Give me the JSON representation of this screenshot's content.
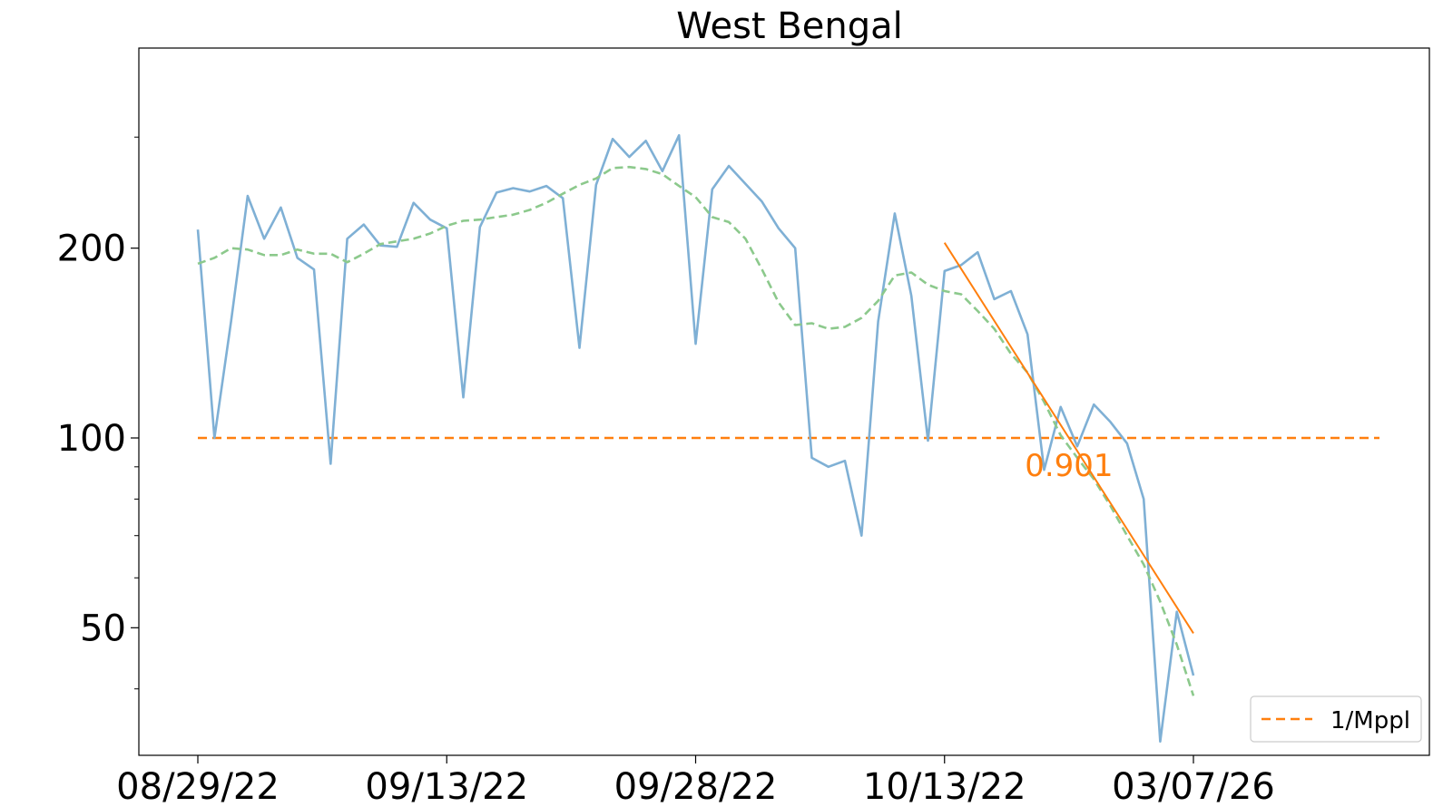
{
  "chart_data": {
    "type": "line",
    "title": "West Bengal",
    "xlabel": "",
    "ylabel": "",
    "y_scale": "log",
    "ylim": [
      28,
      300
    ],
    "x_tick_labels": [
      "08/29/22",
      "09/13/22",
      "09/28/22",
      "10/13/22",
      "03/07/26"
    ],
    "y_tick_labels": [
      "50",
      "100",
      "200"
    ],
    "y_tick_values": [
      50,
      100,
      200
    ],
    "series": [
      {
        "name": "",
        "color": "#7fb0d5",
        "style": "solid",
        "values": [
          214,
          100,
          153,
          242,
          207,
          232,
          193,
          185,
          91,
          207,
          218,
          202,
          201,
          236,
          222,
          215,
          116,
          216,
          245,
          249,
          246,
          251,
          240,
          139,
          252,
          298,
          279,
          296,
          265,
          302,
          141,
          248,
          270,
          253,
          237,
          215,
          200,
          93,
          90,
          92,
          70,
          153,
          227,
          168,
          99,
          184,
          188,
          197,
          166,
          171,
          146,
          89,
          112,
          97,
          113,
          106,
          98,
          80,
          33,
          53,
          42
        ]
      },
      {
        "name": "",
        "color": "#8cc98c",
        "style": "dashed",
        "values": [
          189,
          193,
          200,
          199,
          195,
          195,
          199,
          196,
          196,
          190,
          196,
          203,
          205,
          207,
          211,
          217,
          221,
          222,
          224,
          226,
          230,
          236,
          244,
          252,
          258,
          268,
          269,
          267,
          262,
          251,
          241,
          224,
          220,
          207,
          185,
          164,
          151,
          152,
          149,
          150,
          155,
          165,
          181,
          183,
          175,
          171,
          169,
          159,
          149,
          136,
          127,
          114,
          101,
          93,
          86,
          78,
          70,
          63,
          55,
          47,
          39
        ]
      },
      {
        "name": "1/Mppl",
        "color": "#ff7f0e",
        "style": "dashed",
        "constant": 100
      }
    ],
    "trend_line": {
      "color": "#ff7f0e",
      "start_index": 45,
      "end_index": 60,
      "start_value": 204,
      "end_value": 49,
      "label": "0.901"
    },
    "legend": {
      "placement": "bottom-right",
      "entries": [
        "1/Mppl"
      ]
    },
    "grid": false
  }
}
